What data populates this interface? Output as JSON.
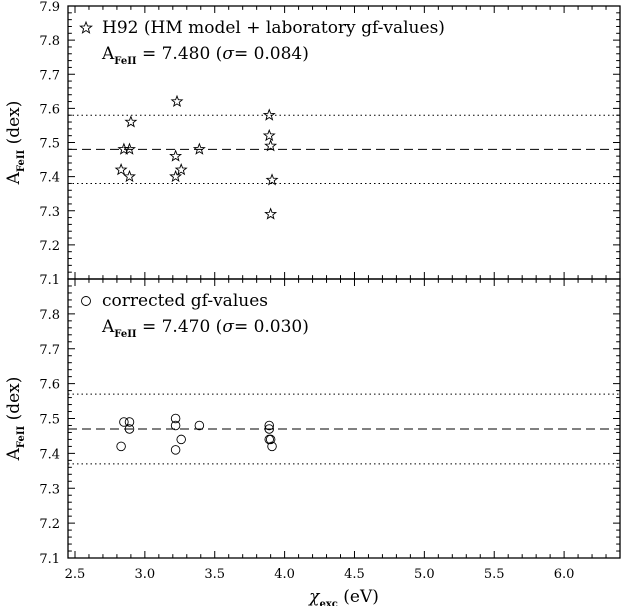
{
  "chart_data": [
    {
      "type": "scatter",
      "panel": "top",
      "legend": "H92 (HM model + laboratory gf-values)",
      "marker": "star",
      "abundance_text": {
        "prefix": "A",
        "sub": "FeII",
        "value": " = 7.480 (",
        "sigma": "σ",
        "sigma_value": "= 0.084)"
      },
      "ylabel": {
        "main": "A",
        "sub": "FeII",
        "unit": " (dex)"
      },
      "xlim": [
        2.45,
        6.4
      ],
      "ylim": [
        7.1,
        7.9
      ],
      "yticks": [
        "7.1",
        "7.2",
        "7.3",
        "7.4",
        "7.5",
        "7.6",
        "7.7",
        "7.8",
        "7.9"
      ],
      "mean": 7.48,
      "sigma": 0.1,
      "points": [
        {
          "x": 2.83,
          "y": 7.42
        },
        {
          "x": 2.85,
          "y": 7.48
        },
        {
          "x": 2.89,
          "y": 7.48
        },
        {
          "x": 2.89,
          "y": 7.4
        },
        {
          "x": 2.9,
          "y": 7.56
        },
        {
          "x": 3.22,
          "y": 7.46
        },
        {
          "x": 3.22,
          "y": 7.4
        },
        {
          "x": 3.23,
          "y": 7.62
        },
        {
          "x": 3.26,
          "y": 7.42
        },
        {
          "x": 3.39,
          "y": 7.48
        },
        {
          "x": 3.89,
          "y": 7.58
        },
        {
          "x": 3.89,
          "y": 7.52
        },
        {
          "x": 3.9,
          "y": 7.49
        },
        {
          "x": 3.9,
          "y": 7.29
        },
        {
          "x": 3.91,
          "y": 7.39
        }
      ]
    },
    {
      "type": "scatter",
      "panel": "bottom",
      "legend": "corrected gf-values",
      "marker": "circle",
      "abundance_text": {
        "prefix": "A",
        "sub": "FeII",
        "value": " = 7.470 (",
        "sigma": "σ",
        "sigma_value": "= 0.030)"
      },
      "ylabel": {
        "main": "A",
        "sub": "FeII",
        "unit": " (dex)"
      },
      "xlabel": {
        "main": "χ",
        "sub": "exc",
        "unit": " (eV)"
      },
      "xlim": [
        2.45,
        6.4
      ],
      "ylim": [
        7.1,
        7.9
      ],
      "xticks": [
        "2.5",
        "3.0",
        "3.5",
        "4.0",
        "4.5",
        "5.0",
        "5.5",
        "6.0"
      ],
      "yticks": [
        "7.1",
        "7.2",
        "7.3",
        "7.4",
        "7.5",
        "7.6",
        "7.7",
        "7.8"
      ],
      "mean": 7.47,
      "sigma": 0.1,
      "points": [
        {
          "x": 2.83,
          "y": 7.42
        },
        {
          "x": 2.85,
          "y": 7.49
        },
        {
          "x": 2.89,
          "y": 7.49
        },
        {
          "x": 2.89,
          "y": 7.47
        },
        {
          "x": 3.22,
          "y": 7.5
        },
        {
          "x": 3.22,
          "y": 7.48
        },
        {
          "x": 3.22,
          "y": 7.41
        },
        {
          "x": 3.26,
          "y": 7.44
        },
        {
          "x": 3.39,
          "y": 7.48
        },
        {
          "x": 3.89,
          "y": 7.48
        },
        {
          "x": 3.89,
          "y": 7.47
        },
        {
          "x": 3.89,
          "y": 7.44
        },
        {
          "x": 3.9,
          "y": 7.44
        },
        {
          "x": 3.91,
          "y": 7.42
        }
      ]
    }
  ]
}
